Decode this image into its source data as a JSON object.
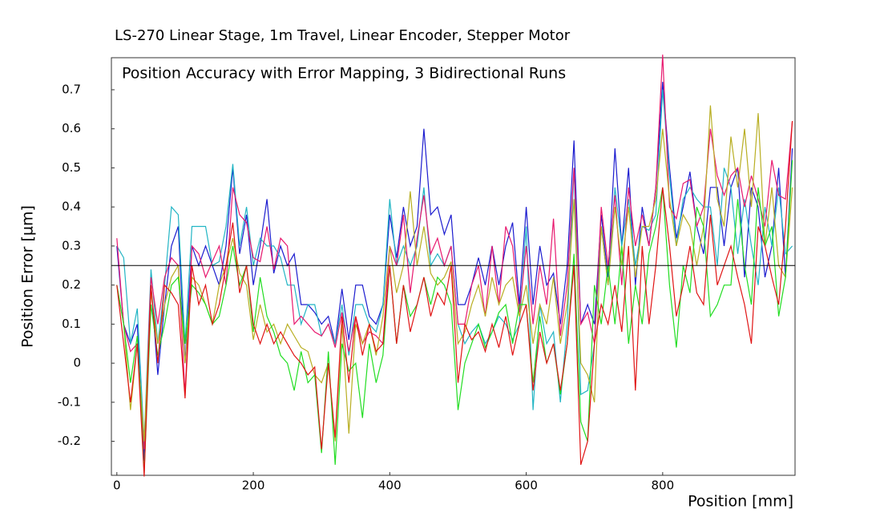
{
  "chart_data": {
    "type": "line",
    "title": "LS-270  Linear Stage, 1m Travel, Linear Encoder, Stepper Motor",
    "annotation": "Position Accuracy with Error Mapping, 3 Bidirectional Runs",
    "x_label": "Position [mm]",
    "y_label": "Position Error [µm]",
    "xlim": [
      -8,
      994
    ],
    "ylim": [
      -0.287,
      0.782
    ],
    "xticks": [
      0,
      200,
      400,
      600,
      800
    ],
    "yticks": [
      -0.2,
      -0.1,
      0,
      0.1,
      0.2,
      0.3,
      0.4,
      0.5,
      0.6,
      0.7
    ],
    "reference_line": 0.25,
    "x": [
      0,
      10,
      20,
      30,
      40,
      50,
      60,
      70,
      80,
      90,
      100,
      110,
      120,
      130,
      140,
      150,
      160,
      170,
      180,
      190,
      200,
      210,
      220,
      230,
      240,
      250,
      260,
      270,
      280,
      290,
      300,
      310,
      320,
      330,
      340,
      350,
      360,
      370,
      380,
      390,
      400,
      410,
      420,
      430,
      440,
      450,
      460,
      470,
      480,
      490,
      500,
      510,
      520,
      530,
      540,
      550,
      560,
      570,
      580,
      590,
      600,
      610,
      620,
      630,
      640,
      650,
      660,
      670,
      680,
      690,
      700,
      710,
      720,
      730,
      740,
      750,
      760,
      770,
      780,
      790,
      800,
      810,
      820,
      830,
      840,
      850,
      860,
      870,
      880,
      890,
      900,
      910,
      920,
      930,
      940,
      950,
      960,
      970,
      980,
      990
    ],
    "series": [
      {
        "color": "#1c1ccf",
        "values": [
          0.3,
          0.1,
          0.05,
          0.1,
          -0.25,
          0.2,
          -0.03,
          0.15,
          0.3,
          0.35,
          0,
          0.3,
          0.25,
          0.3,
          0.25,
          0.2,
          0.3,
          0.5,
          0.28,
          0.38,
          0.2,
          0.3,
          0.42,
          0.23,
          0.3,
          0.25,
          0.28,
          0.15,
          0.15,
          0.13,
          0.1,
          0.12,
          0.05,
          0.19,
          0.06,
          0.2,
          0.2,
          0.12,
          0.1,
          0.15,
          0.38,
          0.27,
          0.4,
          0.3,
          0.35,
          0.6,
          0.38,
          0.4,
          0.33,
          0.38,
          0.15,
          0.15,
          0.2,
          0.27,
          0.2,
          0.3,
          0.2,
          0.3,
          0.36,
          0.15,
          0.4,
          0.15,
          0.3,
          0.2,
          0.23,
          0.1,
          0.25,
          0.57,
          0.1,
          0.15,
          0.1,
          0.38,
          0.22,
          0.55,
          0.3,
          0.5,
          0.2,
          0.4,
          0.3,
          0.45,
          0.72,
          0.5,
          0.32,
          0.4,
          0.49,
          0.35,
          0.28,
          0.45,
          0.45,
          0.3,
          0.45,
          0.5,
          0.22,
          0.45,
          0.4,
          0.22,
          0.3,
          0.5,
          0.22,
          0.55
        ]
      },
      {
        "color": "#22b5c4",
        "values": [
          0.3,
          0.27,
          0.05,
          0.14,
          -0.2,
          0.24,
          0.05,
          0.2,
          0.4,
          0.38,
          0.05,
          0.35,
          0.35,
          0.35,
          0.25,
          0.26,
          0.35,
          0.51,
          0.3,
          0.4,
          0.25,
          0.32,
          0.3,
          0.3,
          0.27,
          0.2,
          0.2,
          0.1,
          0.15,
          0.15,
          0.07,
          0.1,
          0.05,
          0.15,
          0.02,
          0.15,
          0.15,
          0.1,
          0.08,
          0.15,
          0.42,
          0.25,
          0.3,
          0.25,
          0.3,
          0.45,
          0.25,
          0.28,
          0.25,
          0.3,
          0.1,
          0.05,
          0.08,
          0.1,
          0.05,
          0.08,
          0.12,
          0.1,
          0.06,
          0.1,
          0.35,
          -0.12,
          0.15,
          0.05,
          0.08,
          -0.1,
          0.1,
          0.5,
          -0.08,
          -0.07,
          0.05,
          0.35,
          0.2,
          0.45,
          0.3,
          0.42,
          0.25,
          0.35,
          0.34,
          0.38,
          0.7,
          0.48,
          0.3,
          0.42,
          0.45,
          0.42,
          0.4,
          0.4,
          0.25,
          0.5,
          0.45,
          0.28,
          0.42,
          0.3,
          0.2,
          0.4,
          0.3,
          0.45,
          0.28,
          0.3
        ]
      },
      {
        "color": "#e8186e",
        "values": [
          0.32,
          0.1,
          0.03,
          0.05,
          -0.22,
          0.22,
          0.1,
          0.22,
          0.27,
          0.25,
          -0.08,
          0.3,
          0.28,
          0.22,
          0.26,
          0.3,
          0.2,
          0.45,
          0.38,
          0.36,
          0.27,
          0.26,
          0.35,
          0.24,
          0.32,
          0.3,
          0.1,
          0.12,
          0.1,
          0.08,
          0.07,
          0.1,
          0.04,
          0.13,
          0.03,
          0.12,
          0.05,
          0.08,
          0.07,
          0.05,
          0.3,
          0.25,
          0.38,
          0.18,
          0.32,
          0.43,
          0.28,
          0.32,
          0.25,
          0.3,
          0.1,
          0.1,
          0.2,
          0.25,
          0.12,
          0.3,
          0.15,
          0.35,
          0.3,
          0.13,
          0.3,
          0.1,
          0.25,
          0.15,
          0.37,
          0.07,
          0.2,
          0.5,
          0.1,
          0.13,
          0.05,
          0.4,
          0.25,
          0.43,
          0.2,
          0.45,
          0.3,
          0.38,
          0.3,
          0.45,
          0.79,
          0.4,
          0.37,
          0.46,
          0.47,
          0.35,
          0.4,
          0.6,
          0.48,
          0.43,
          0.48,
          0.5,
          0.4,
          0.48,
          0.42,
          0.35,
          0.52,
          0.43,
          0.42,
          0.62
        ]
      },
      {
        "color": "#b8ae22",
        "values": [
          0.2,
          0.1,
          -0.12,
          0.05,
          -0.2,
          0.18,
          0.05,
          0.15,
          0.22,
          0.25,
          0,
          0.22,
          0.2,
          0.15,
          0.1,
          0.2,
          0.25,
          0.32,
          0.23,
          0.2,
          0.06,
          0.15,
          0.08,
          0.1,
          0.05,
          0.1,
          0.07,
          0.04,
          0.03,
          -0.03,
          -0.05,
          0,
          -0.2,
          0.1,
          -0.18,
          0.1,
          0.05,
          0.1,
          0.02,
          0.12,
          0.3,
          0.18,
          0.25,
          0.44,
          0.25,
          0.35,
          0.23,
          0.2,
          0.22,
          0.26,
          0.05,
          0.08,
          0.15,
          0.2,
          0.12,
          0.22,
          0.15,
          0.2,
          0.22,
          0.12,
          0.2,
          0.05,
          0.15,
          0.1,
          0.22,
          0.05,
          0.15,
          0.42,
          0,
          -0.03,
          -0.1,
          0.35,
          0.2,
          0.4,
          0.25,
          0.4,
          0.22,
          0.35,
          0.35,
          0.42,
          0.6,
          0.42,
          0.3,
          0.38,
          0.35,
          0.25,
          0.35,
          0.66,
          0.42,
          0.35,
          0.58,
          0.45,
          0.6,
          0.4,
          0.64,
          0.3,
          0.45,
          0.25,
          0.22,
          0.45
        ]
      },
      {
        "color": "#22dd22",
        "values": [
          0.2,
          0.1,
          -0.05,
          0.07,
          -0.28,
          0.15,
          0.02,
          0.1,
          0.2,
          0.22,
          0.05,
          0.2,
          0.18,
          0.15,
          0.1,
          0.12,
          0.2,
          0.3,
          0.2,
          0.25,
          0.08,
          0.22,
          0.12,
          0.08,
          0.02,
          0,
          -0.07,
          0.03,
          -0.05,
          -0.03,
          -0.23,
          0.03,
          -0.26,
          0.05,
          -0.02,
          0,
          -0.14,
          0.05,
          -0.05,
          0.02,
          0.25,
          0.05,
          0.2,
          0.12,
          0.15,
          0.22,
          0.15,
          0.22,
          0.2,
          0.15,
          -0.12,
          0,
          0.05,
          0.1,
          0.04,
          0.08,
          0.13,
          0.15,
          0.05,
          0.15,
          0.15,
          -0.05,
          0.12,
          0,
          0.05,
          -0.08,
          0.05,
          0.28,
          -0.15,
          -0.2,
          0.2,
          0.1,
          0.25,
          0.1,
          0.3,
          0.05,
          0.2,
          0.1,
          0.28,
          0.35,
          0.45,
          0.2,
          0.04,
          0.25,
          0.18,
          0.4,
          0.35,
          0.12,
          0.15,
          0.2,
          0.2,
          0.42,
          0.25,
          0.15,
          0.45,
          0.3,
          0.35,
          0.12,
          0.22,
          0.52
        ]
      },
      {
        "color": "#e01414",
        "values": [
          0.2,
          0.05,
          -0.1,
          0.05,
          -0.29,
          0.2,
          0,
          0.2,
          0.18,
          0.15,
          -0.09,
          0.25,
          0.15,
          0.2,
          0.1,
          0.15,
          0.25,
          0.36,
          0.18,
          0.25,
          0.1,
          0.05,
          0.1,
          0.05,
          0.08,
          0.05,
          0.02,
          0,
          -0.03,
          -0.01,
          -0.22,
          0,
          -0.19,
          0.12,
          -0.05,
          0.12,
          0.02,
          0.1,
          0.03,
          0.05,
          0.25,
          0.05,
          0.2,
          0.08,
          0.15,
          0.22,
          0.12,
          0.18,
          0.15,
          0.25,
          -0.05,
          0.1,
          0.06,
          0.08,
          0.03,
          0.1,
          0.04,
          0.12,
          0.02,
          0.1,
          0.15,
          -0.07,
          0.08,
          0,
          0.05,
          -0.07,
          0.05,
          0.25,
          -0.26,
          -0.2,
          0.05,
          0.15,
          0.1,
          0.2,
          0.08,
          0.3,
          -0.07,
          0.3,
          0.1,
          0.25,
          0.45,
          0.3,
          0.12,
          0.2,
          0.3,
          0.18,
          0.15,
          0.38,
          0.2,
          0.25,
          0.3,
          0.22,
          0.15,
          0.05,
          0.35,
          0.3,
          0.22,
          0.15,
          0.35,
          0.62
        ]
      }
    ]
  }
}
